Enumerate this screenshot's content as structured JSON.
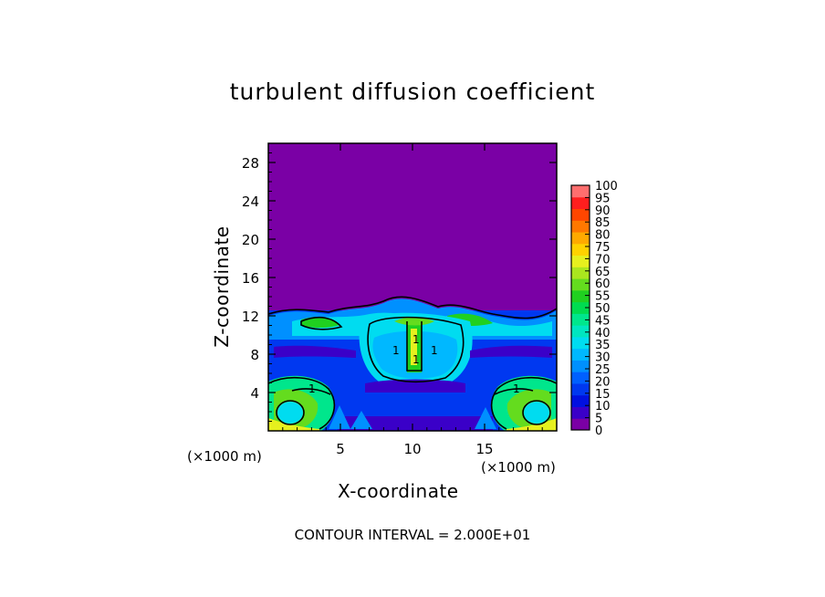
{
  "chart_data": {
    "type": "heatmap",
    "title": "turbulent diffusion coefficient",
    "xlabel": "X-coordinate",
    "ylabel": "Z-coordinate",
    "x_unit_label": "(×1000 m)",
    "y_unit_label": "(×1000 m)",
    "xlim": [
      0,
      20
    ],
    "ylim": [
      0,
      30
    ],
    "x_ticks": [
      "5",
      "10",
      "15"
    ],
    "y_ticks": [
      "4",
      "8",
      "12",
      "16",
      "20",
      "24",
      "28"
    ],
    "colorbar_levels": [
      "0",
      "5",
      "10",
      "15",
      "20",
      "25",
      "30",
      "35",
      "40",
      "45",
      "50",
      "55",
      "60",
      "65",
      "70",
      "75",
      "80",
      "85",
      "90",
      "95",
      "100"
    ],
    "colorbar_colors": [
      "#7a00a5",
      "#3a00c8",
      "#0010e0",
      "#0038f0",
      "#0060ff",
      "#0090ff",
      "#00b8ff",
      "#00dcf0",
      "#00e6c0",
      "#00e68c",
      "#00dc50",
      "#20d020",
      "#64dc1e",
      "#aae61e",
      "#e6f01e",
      "#ffd200",
      "#ffaa00",
      "#ff7800",
      "#ff4600",
      "#ff1e1e",
      "#ff6e6e"
    ],
    "contour_interval_text": "CONTOUR INTERVAL = 2.000E+01",
    "contour_labels": [
      "1",
      "1",
      "1",
      "1",
      "1",
      "1"
    ]
  }
}
